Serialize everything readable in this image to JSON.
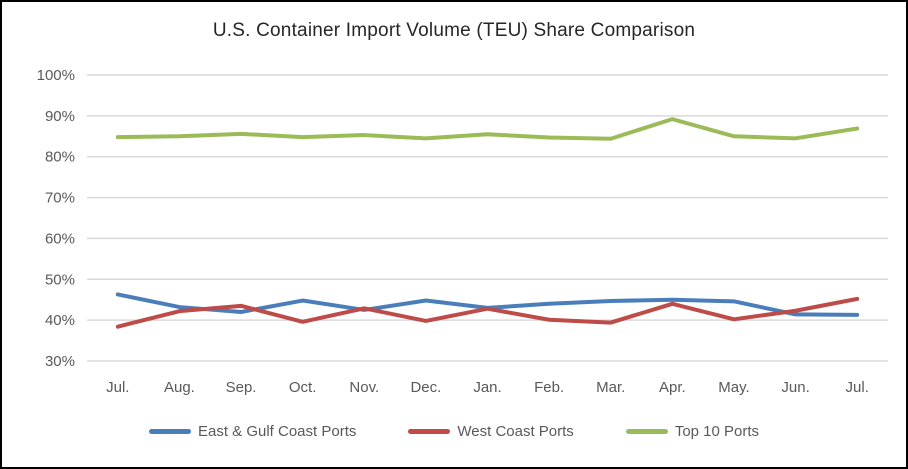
{
  "chart_data": {
    "type": "line",
    "title": "U.S. Container Import Volume (TEU) Share Comparison",
    "xlabel": "",
    "ylabel": "",
    "categories": [
      "Jul.",
      "Aug.",
      "Sep.",
      "Oct.",
      "Nov.",
      "Dec.",
      "Jan.",
      "Feb.",
      "Mar.",
      "Apr.",
      "May.",
      "Jun.",
      "Jul."
    ],
    "series": [
      {
        "name": "East & Gulf Coast Ports",
        "color": "#4A7EBB",
        "values": [
          46.3,
          43.2,
          42.0,
          44.8,
          42.5,
          44.8,
          43.0,
          44.0,
          44.7,
          45.0,
          44.6,
          41.4,
          41.3
        ]
      },
      {
        "name": "West Coast Ports",
        "color": "#BE4B48",
        "values": [
          38.4,
          42.2,
          43.5,
          39.6,
          42.9,
          39.8,
          42.8,
          40.1,
          39.4,
          44.0,
          40.2,
          42.3,
          45.2
        ]
      },
      {
        "name": "Top 10 Ports",
        "color": "#9BBB59",
        "values": [
          84.8,
          85.0,
          85.6,
          84.8,
          85.3,
          84.5,
          85.5,
          84.7,
          84.4,
          89.2,
          85.0,
          84.5,
          86.9
        ]
      }
    ],
    "ylim": [
      30,
      100
    ],
    "yticks": [
      100,
      90,
      80,
      70,
      60,
      50,
      40,
      30
    ],
    "ytick_labels": [
      "100%",
      "90%",
      "80%",
      "70%",
      "60%",
      "50%",
      "40%",
      "30%"
    ],
    "grid": "horizontal",
    "legend_position": "bottom",
    "style": {
      "grid_color": "#D9D9D9",
      "axis_text_color": "#595959",
      "title_color": "#262626",
      "border_color": "#000000",
      "background": "#ffffff",
      "line_width": 4
    }
  }
}
